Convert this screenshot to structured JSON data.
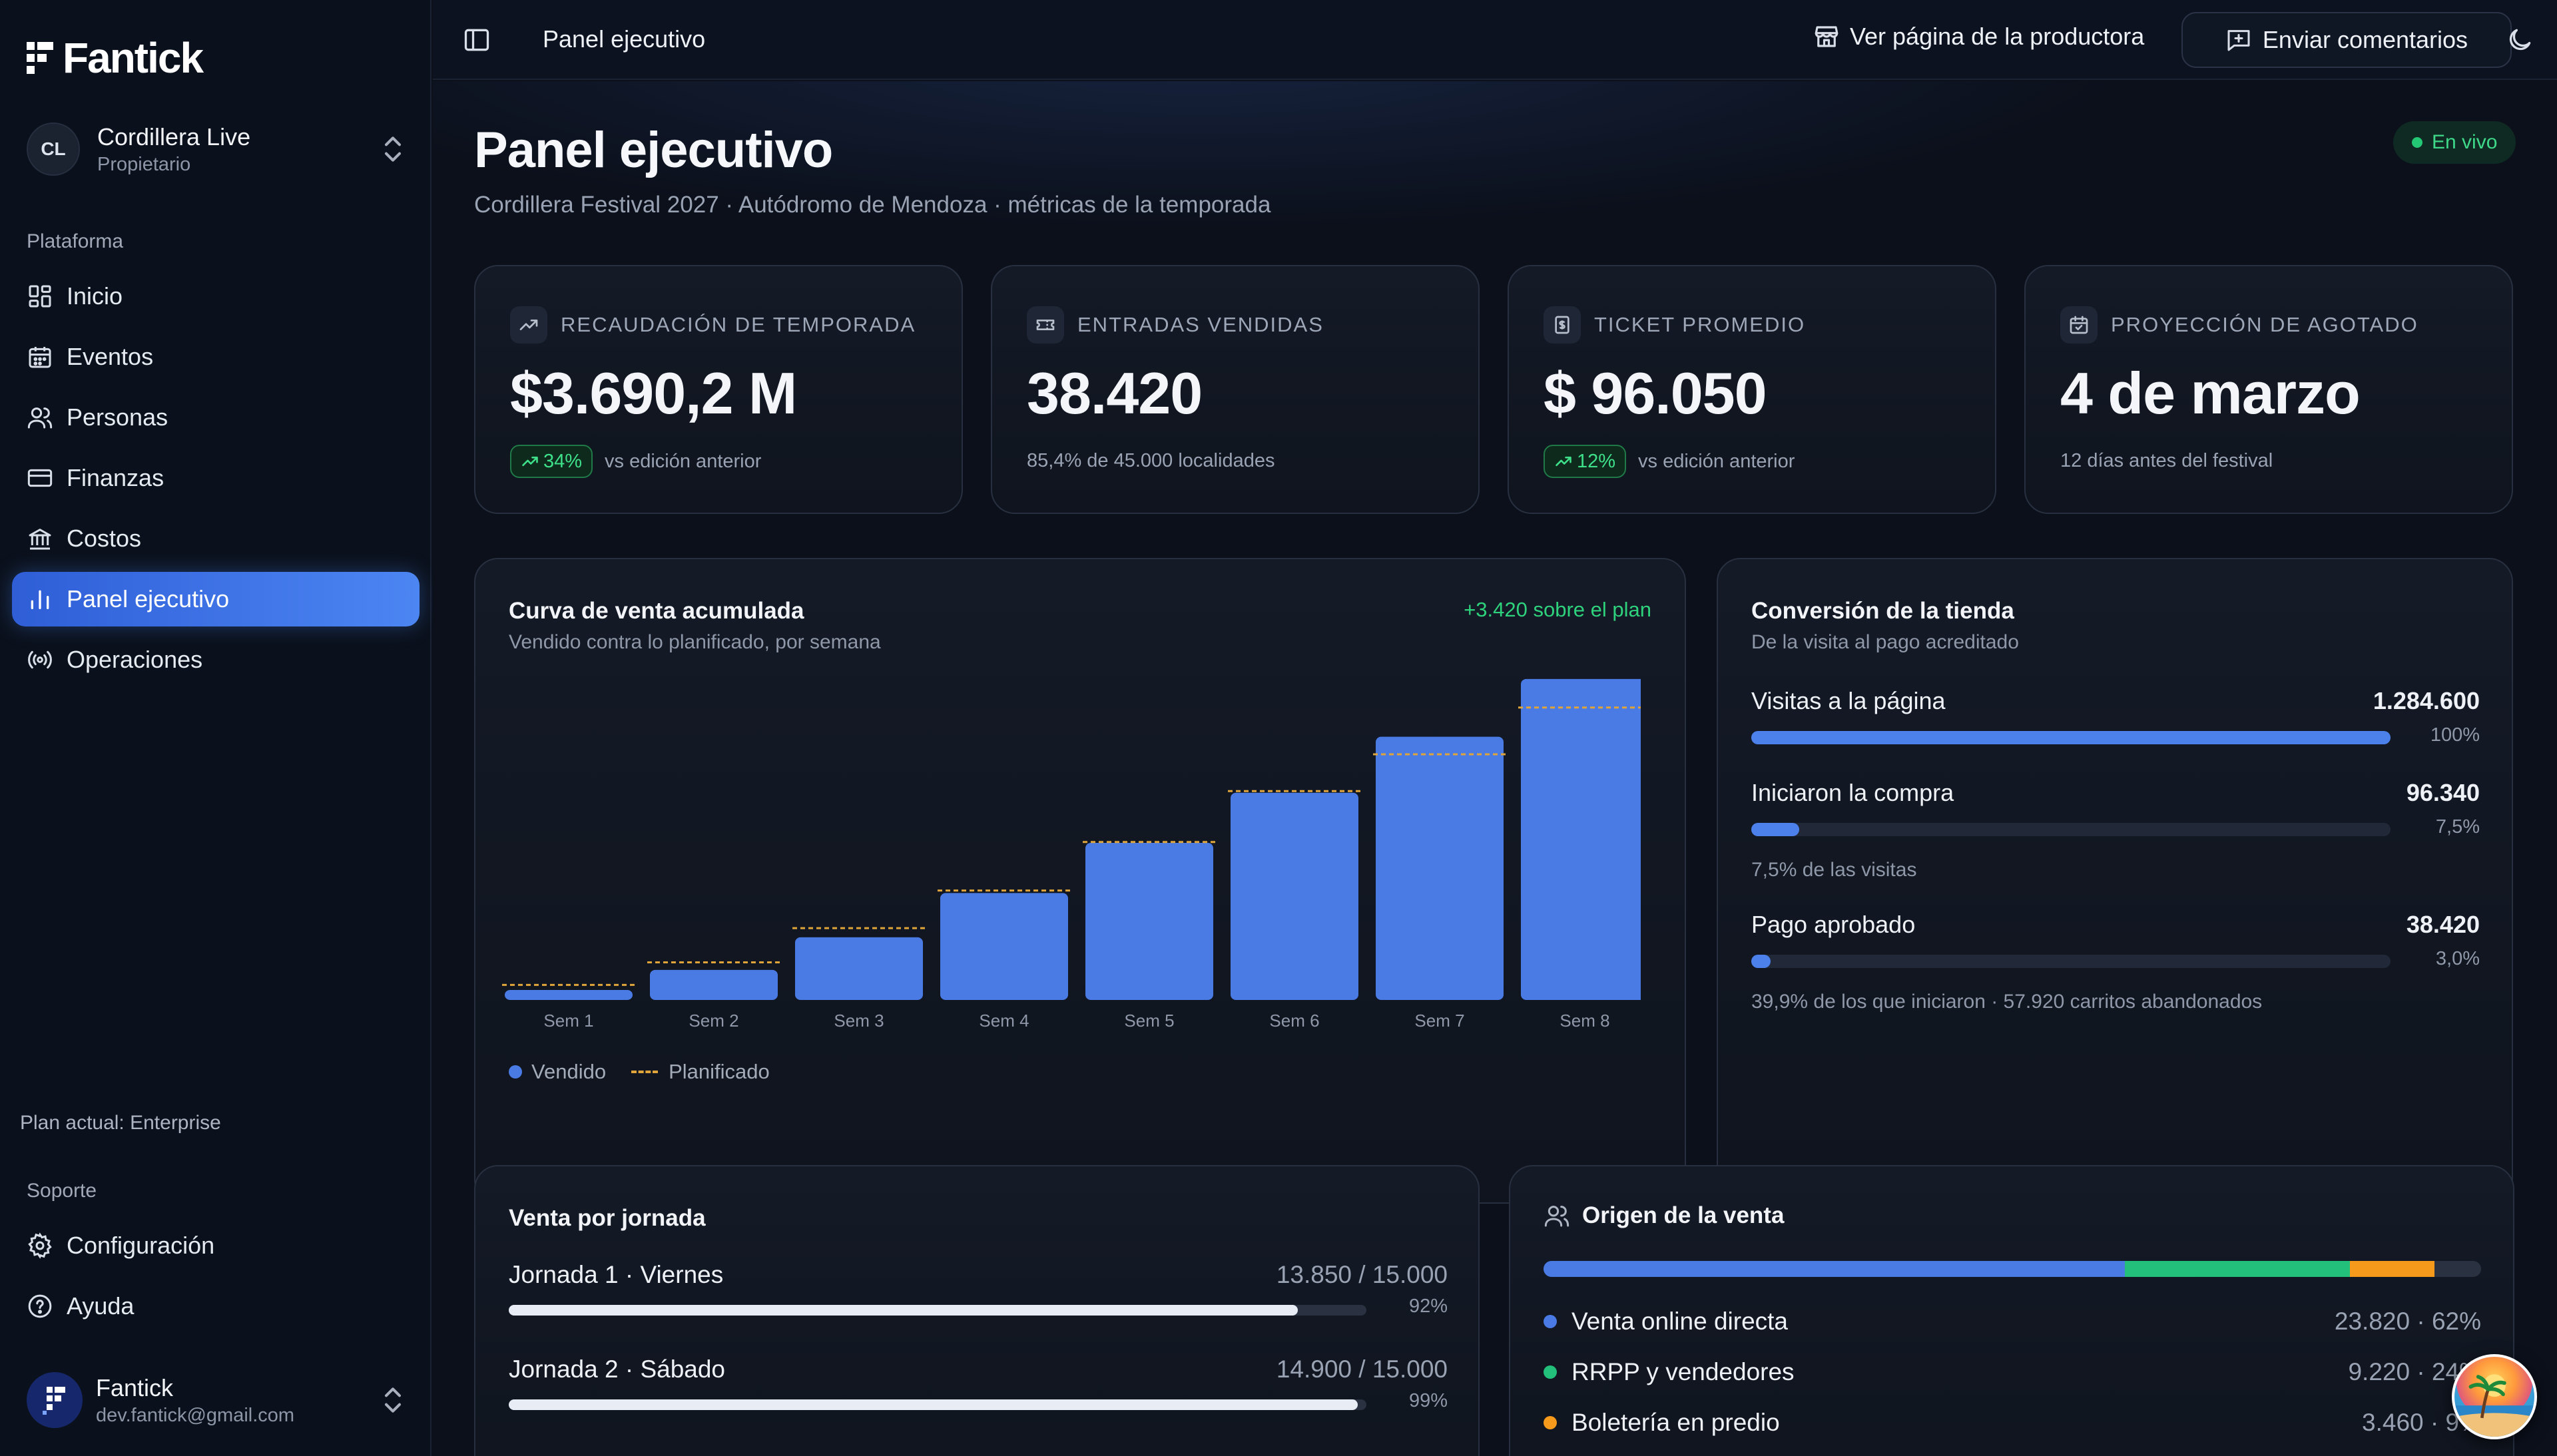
{
  "brand": {
    "name": "Fantick"
  },
  "workspace": {
    "initials": "CL",
    "name": "Cordillera Live",
    "role": "Propietario"
  },
  "sidebar": {
    "section_platform": "Plataforma",
    "items": [
      {
        "label": "Inicio",
        "icon": "dashboard-icon"
      },
      {
        "label": "Eventos",
        "icon": "calendar-icon"
      },
      {
        "label": "Personas",
        "icon": "users-icon"
      },
      {
        "label": "Finanzas",
        "icon": "card-icon"
      },
      {
        "label": "Costos",
        "icon": "bank-icon"
      },
      {
        "label": "Panel ejecutivo",
        "icon": "bar-chart-icon",
        "active": true
      },
      {
        "label": "Operaciones",
        "icon": "broadcast-icon"
      }
    ],
    "plan": "Plan actual: Enterprise",
    "section_support": "Soporte",
    "support_items": [
      {
        "label": "Configuración",
        "icon": "gear-icon"
      },
      {
        "label": "Ayuda",
        "icon": "help-icon"
      }
    ]
  },
  "user": {
    "name": "Fantick",
    "email": "dev.fantick@gmail.com"
  },
  "topbar": {
    "title": "Panel ejecutivo",
    "producer_link": "Ver página de la productora",
    "feedback_button": "Enviar comentarios"
  },
  "page": {
    "title": "Panel ejecutivo",
    "subtitle": "Cordillera Festival 2027 · Autódromo de Mendoza · métricas de la temporada",
    "status": "En vivo"
  },
  "kpis": [
    {
      "label": "RECAUDACIÓN DE TEMPORADA",
      "value": "$3.690,2 M",
      "delta": "34%",
      "foot": "vs edición anterior"
    },
    {
      "label": "ENTRADAS VENDIDAS",
      "value": "38.420",
      "foot": "85,4% de 45.000 localidades"
    },
    {
      "label": "TICKET PROMEDIO",
      "value": "$ 96.050",
      "delta": "12%",
      "foot": "vs edición anterior"
    },
    {
      "label": "PROYECCIÓN DE AGOTADO",
      "value": "4 de marzo",
      "foot": "12 días antes del festival"
    }
  ],
  "sales_curve": {
    "title": "Curva de venta acumulada",
    "subtitle": "Vendido contra lo planificado, por semana",
    "note": "+3.420 sobre el plan",
    "legend_sold": "Vendido",
    "legend_plan": "Planificado"
  },
  "chart_data": {
    "type": "bar",
    "categories": [
      "Sem 1",
      "Sem 2",
      "Sem 3",
      "Sem 4",
      "Sem 5",
      "Sem 6",
      "Sem 7",
      "Sem 8"
    ],
    "series": [
      {
        "name": "Vendido",
        "values": [
          1200,
          3600,
          7500,
          12800,
          18800,
          24800,
          31500,
          38420
        ],
        "color": "#4a7be5"
      },
      {
        "name": "Planificado",
        "values": [
          1800,
          4500,
          8600,
          13100,
          18900,
          25000,
          29400,
          35000
        ],
        "color": "#e0a53a"
      }
    ],
    "ylim": [
      0,
      40000
    ],
    "legend": "bottom-left"
  },
  "conversion": {
    "title": "Conversión de la tienda",
    "subtitle": "De la visita al pago acreditado",
    "rows": [
      {
        "label": "Visitas a la página",
        "value": "1.284.600",
        "pct": "100%",
        "fraction": 1.0
      },
      {
        "label": "Iniciaron la compra",
        "value": "96.340",
        "pct": "7,5%",
        "fraction": 0.075,
        "note": "7,5% de las visitas"
      },
      {
        "label": "Pago aprobado",
        "value": "38.420",
        "pct": "3,0%",
        "fraction": 0.03,
        "note": "39,9% de los que iniciaron · 57.920 carritos abandonados"
      }
    ]
  },
  "days": {
    "title": "Venta por jornada",
    "rows": [
      {
        "label": "Jornada 1 · Viernes",
        "value": "13.850 / 15.000",
        "pct": "92%",
        "fraction": 0.92
      },
      {
        "label": "Jornada 2 · Sábado",
        "value": "14.900 / 15.000",
        "pct": "99%",
        "fraction": 0.99
      }
    ]
  },
  "origin": {
    "title": "Origen de la venta",
    "segments": [
      {
        "label": "Venta online directa",
        "value": "23.820 · 62%",
        "color": "#4a7be5",
        "fraction": 0.62
      },
      {
        "label": "RRPP y vendedores",
        "value": "9.220 · 24%",
        "color": "#22c07a",
        "fraction": 0.24
      },
      {
        "label": "Boletería en predio",
        "value": "3.460 · 9%",
        "color": "#f59a1b",
        "fraction": 0.09
      }
    ]
  }
}
